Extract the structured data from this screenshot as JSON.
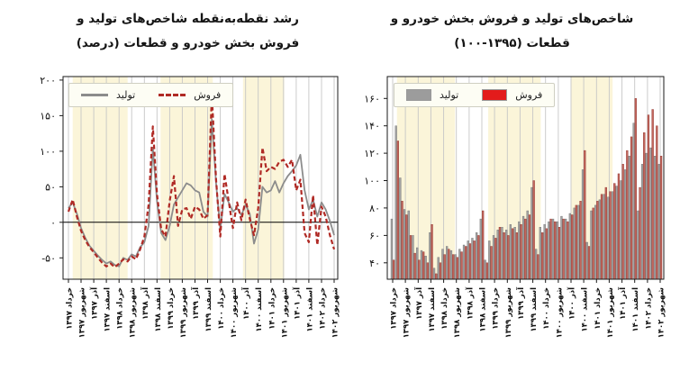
{
  "page": {
    "background": "#ffffff",
    "grid_color": "#c6c6c6",
    "frame_color": "#1a1a1a"
  },
  "chart_data": [
    {
      "id": "growth-line-chart",
      "type": "line",
      "title_lines": [
        "رشد نقطه‌به‌نقطه شاخص‌های تولید و",
        "فروش بخش خودرو و قطعات (درصد)"
      ],
      "xlabel": "",
      "ylabel": "",
      "ylim": [
        -80,
        205
      ],
      "n_points": 64,
      "zero_line": true,
      "grid": true,
      "legend_position": "top-left",
      "band_color": "#fbf5d9",
      "bands": [
        [
          0.035,
          0.235
        ],
        [
          0.355,
          0.545
        ],
        [
          0.655,
          0.805
        ]
      ],
      "yticks": [
        {
          "v": -50,
          "label": "-۵۰"
        },
        {
          "v": 0,
          "label": "۰"
        },
        {
          "v": 50,
          "label": "۵۰"
        },
        {
          "v": 100,
          "label": "۱۰۰"
        },
        {
          "v": 150,
          "label": "۱۵۰"
        },
        {
          "v": 200,
          "label": "۲۰۰"
        }
      ],
      "xtick_indices": [
        0,
        3,
        6,
        9,
        12,
        15,
        18,
        21,
        24,
        27,
        30,
        33,
        36,
        39,
        42,
        45,
        48,
        51,
        54,
        57,
        60,
        63
      ],
      "xtick_labels": [
        "خرداد ۱۳۹۷",
        "شهریور ۱۳۹۷",
        "آذر ۱۳۹۷",
        "اسفند ۱۳۹۷",
        "خرداد ۱۳۹۸",
        "شهریور ۱۳۹۸",
        "آذر ۱۳۹۸",
        "اسفند ۱۳۹۸",
        "خرداد ۱۳۹۹",
        "شهریور ۱۳۹۹",
        "آذر ۱۳۹۹",
        "اسفند ۱۳۹۹",
        "خرداد ۱۴۰۰",
        "شهریور ۱۴۰۰",
        "آذر ۱۴۰۰",
        "اسفند ۱۴۰۰",
        "خرداد ۱۴۰۱",
        "شهریور ۱۴۰۱",
        "آذر ۱۴۰۱",
        "اسفند ۱۴۰۱",
        "خرداد ۱۴۰۲",
        "شهریور ۱۴۰۲"
      ],
      "series": [
        {
          "name": "تولید",
          "data_name": "production-line",
          "style": "solid-line",
          "color": "#8c8c8c",
          "width": 1.8,
          "values": [
            20,
            28,
            12,
            -8,
            -22,
            -33,
            -40,
            -47,
            -53,
            -58,
            -55,
            -60,
            -62,
            -50,
            -53,
            -45,
            -48,
            -35,
            -28,
            -5,
            105,
            30,
            -15,
            -25,
            -5,
            25,
            35,
            45,
            55,
            52,
            45,
            42,
            15,
            8,
            145,
            55,
            -10,
            40,
            28,
            15,
            20,
            10,
            25,
            12,
            -30,
            -10,
            50,
            42,
            45,
            58,
            42,
            55,
            65,
            72,
            80,
            95,
            45,
            18,
            32,
            8,
            28,
            18,
            2,
            -18
          ]
        },
        {
          "name": "فروش",
          "data_name": "sales-line",
          "style": "dashed",
          "color": "#b02a25",
          "width": 2.2,
          "values": [
            15,
            32,
            8,
            -12,
            -25,
            -35,
            -42,
            -50,
            -57,
            -62,
            -58,
            -63,
            -58,
            -52,
            -55,
            -48,
            -52,
            -38,
            -20,
            25,
            135,
            40,
            -10,
            -20,
            30,
            65,
            -5,
            18,
            20,
            5,
            22,
            18,
            5,
            10,
            180,
            60,
            -20,
            68,
            30,
            -8,
            28,
            3,
            32,
            5,
            -18,
            20,
            105,
            72,
            78,
            75,
            85,
            88,
            78,
            88,
            45,
            60,
            -15,
            -28,
            38,
            -32,
            22,
            8,
            -18,
            -38
          ]
        }
      ]
    },
    {
      "id": "index-bar-chart",
      "type": "bar",
      "title_lines": [
        "شاخص‌های تولید و فروش بخش خودرو و",
        "قطعات (۱۳۹۵-۱۰۰)"
      ],
      "xlabel": "",
      "ylabel": "",
      "ylim": [
        28,
        176
      ],
      "n_points": 64,
      "zero_line": false,
      "grid": true,
      "legend_position": "top-left",
      "band_color": "#fbf5d9",
      "bands": [
        [
          0.035,
          0.245
        ],
        [
          0.365,
          0.555
        ],
        [
          0.665,
          0.815
        ]
      ],
      "yticks": [
        {
          "v": 40,
          "label": "۴۰"
        },
        {
          "v": 60,
          "label": "۶۰"
        },
        {
          "v": 80,
          "label": "۸۰"
        },
        {
          "v": 100,
          "label": "۱۰۰"
        },
        {
          "v": 120,
          "label": "۱۲۰"
        },
        {
          "v": 140,
          "label": "۱۴۰"
        },
        {
          "v": 160,
          "label": "۱۶۰"
        }
      ],
      "xtick_indices": [
        0,
        3,
        6,
        9,
        12,
        15,
        18,
        21,
        24,
        27,
        30,
        33,
        36,
        39,
        42,
        45,
        48,
        51,
        54,
        57,
        60,
        63
      ],
      "xtick_labels": [
        "خرداد ۱۳۹۷",
        "شهریور ۱۳۹۷",
        "آذر ۱۳۹۷",
        "اسفند ۱۳۹۷",
        "خرداد ۱۳۹۸",
        "شهریور ۱۳۹۸",
        "آذر ۱۳۹۸",
        "اسفند ۱۳۹۸",
        "خرداد ۱۳۹۹",
        "شهریور ۱۳۹۹",
        "آذر ۱۳۹۹",
        "اسفند ۱۳۹۹",
        "خرداد ۱۴۰۰",
        "شهریور ۱۴۰۰",
        "آذر ۱۴۰۰",
        "اسفند ۱۴۰۰",
        "خرداد ۱۴۰۱",
        "شهریور ۱۴۰۱",
        "آذر ۱۴۰۱",
        "اسفند ۱۴۰۱",
        "خرداد ۱۴۰۲",
        "شهریور ۱۴۰۲"
      ],
      "series": [
        {
          "name": "تولید",
          "data_name": "production-bar",
          "style": "rect",
          "color": "#a3a3a3",
          "edge": "#6f6f6f",
          "legend_color": "#9c9c9c",
          "values": [
            72,
            140,
            102,
            79,
            78,
            60,
            51,
            49,
            45,
            62,
            36,
            44,
            50,
            52,
            49,
            46,
            50,
            53,
            56,
            58,
            62,
            72,
            42,
            56,
            60,
            64,
            66,
            64,
            68,
            66,
            70,
            74,
            78,
            95,
            50,
            66,
            68,
            70,
            72,
            70,
            74,
            72,
            76,
            80,
            82,
            108,
            55,
            78,
            82,
            86,
            90,
            88,
            92,
            96,
            100,
            108,
            118,
            142,
            78,
            112,
            120,
            124,
            118,
            112
          ]
        },
        {
          "name": "فروش",
          "data_name": "sales-bar",
          "style": "rect",
          "color": "#c2675d",
          "edge": "#8d2f28",
          "legend_color": "#e31b1b",
          "values": [
            42,
            129,
            85,
            75,
            60,
            47,
            42,
            48,
            40,
            68,
            32,
            40,
            46,
            50,
            46,
            44,
            48,
            52,
            54,
            56,
            60,
            78,
            40,
            52,
            58,
            66,
            62,
            60,
            65,
            62,
            68,
            72,
            75,
            100,
            46,
            62,
            65,
            72,
            70,
            66,
            72,
            70,
            75,
            82,
            85,
            122,
            52,
            80,
            85,
            90,
            95,
            92,
            98,
            105,
            112,
            122,
            132,
            160,
            95,
            135,
            148,
            152,
            140,
            118
          ]
        }
      ]
    }
  ]
}
